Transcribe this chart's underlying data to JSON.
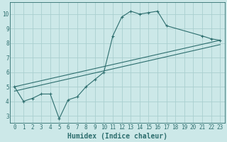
{
  "xlabel": "Humidex (Indice chaleur)",
  "xlim": [
    -0.5,
    23.5
  ],
  "ylim": [
    2.5,
    10.8
  ],
  "yticks": [
    3,
    4,
    5,
    6,
    7,
    8,
    9,
    10
  ],
  "xticks": [
    0,
    1,
    2,
    3,
    4,
    5,
    6,
    7,
    8,
    9,
    10,
    11,
    12,
    13,
    14,
    15,
    16,
    17,
    18,
    19,
    20,
    21,
    22,
    23
  ],
  "bg_color": "#cce8e8",
  "grid_color": "#aacfcf",
  "line_color": "#2d6e6e",
  "line1_x": [
    0,
    1,
    2,
    3,
    4,
    5,
    6,
    7,
    8,
    9,
    10,
    11,
    12,
    13,
    14,
    15,
    16,
    17,
    21,
    22,
    23
  ],
  "line1_y": [
    5.0,
    4.0,
    4.2,
    4.5,
    4.5,
    2.8,
    4.1,
    4.3,
    5.0,
    5.5,
    6.0,
    8.5,
    9.8,
    10.2,
    10.0,
    10.1,
    10.2,
    9.2,
    8.5,
    8.3,
    8.2
  ],
  "line2_x": [
    0,
    23
  ],
  "line2_y": [
    5.0,
    8.2
  ],
  "line3_x": [
    0,
    23
  ],
  "line3_y": [
    4.7,
    7.9
  ],
  "axis_fontsize": 7,
  "tick_fontsize": 5.5
}
